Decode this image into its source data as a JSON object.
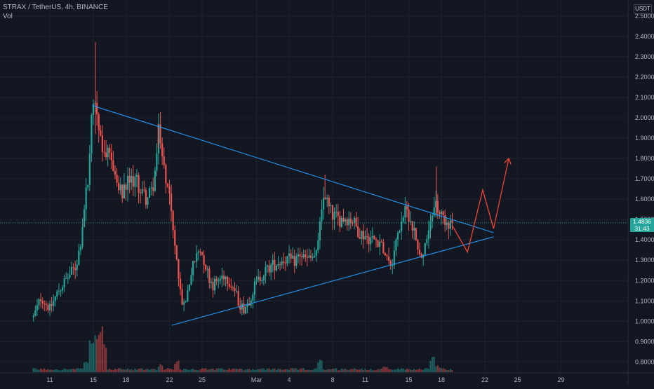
{
  "header": {
    "title": "STRAX / TetherUS, 4h, BINANCE",
    "indicator": "Vol"
  },
  "price_axis": {
    "currency": "USDT",
    "last_price": "1.4836",
    "countdown": "31:43"
  },
  "colors": {
    "background": "#131722",
    "up": "#26a69a",
    "down": "#ef5350",
    "trendline": "#2196f3",
    "projection": "#f44336",
    "grid": "#1e222d"
  },
  "chart_data": {
    "type": "candlestick",
    "title": "STRAX / TetherUS, 4h, BINANCE",
    "ylim": [
      0.76,
      2.52
    ],
    "y_ticks": [
      "0.8000",
      "0.9000",
      "1.0000",
      "1.1000",
      "1.2000",
      "1.3000",
      "1.4000",
      "1.5000",
      "1.6000",
      "1.7000",
      "1.8000",
      "1.9000",
      "2.0000",
      "2.1000",
      "2.2000",
      "2.3000",
      "2.4000",
      "2.5000"
    ],
    "x_ticks": [
      "11",
      "15",
      "18",
      "22",
      "25",
      "Mar",
      "4",
      "8",
      "11",
      "15",
      "18",
      "22",
      "25",
      "29"
    ],
    "x_tick_days": [
      -18,
      -14,
      -11,
      -7,
      -4,
      1,
      4,
      8,
      11,
      15,
      18,
      22,
      25,
      29
    ],
    "grid": true,
    "legend": "none",
    "price_anchors": [
      [
        -19.5,
        1.02
      ],
      [
        -18.8,
        1.12
      ],
      [
        -18,
        1.06
      ],
      [
        -17.2,
        1.15
      ],
      [
        -16.3,
        1.22
      ],
      [
        -15.6,
        1.27
      ],
      [
        -15.2,
        1.38
      ],
      [
        -14.7,
        1.62
      ],
      [
        -14.4,
        1.72
      ],
      [
        -14.2,
        1.98
      ],
      [
        -13.9,
        2.12
      ],
      [
        -13.5,
        1.94
      ],
      [
        -13,
        1.83
      ],
      [
        -12.2,
        1.78
      ],
      [
        -11.8,
        1.66
      ],
      [
        -11.3,
        1.62
      ],
      [
        -10.8,
        1.68
      ],
      [
        -10.2,
        1.7
      ],
      [
        -9.6,
        1.64
      ],
      [
        -9.1,
        1.6
      ],
      [
        -8.6,
        1.64
      ],
      [
        -8.3,
        1.74
      ],
      [
        -8,
        1.92
      ],
      [
        -7.6,
        1.77
      ],
      [
        -7.2,
        1.69
      ],
      [
        -6.9,
        1.56
      ],
      [
        -6.6,
        1.4
      ],
      [
        -6.3,
        1.28
      ],
      [
        -6,
        1.13
      ],
      [
        -5.7,
        1.07
      ],
      [
        -5.4,
        1.13
      ],
      [
        -5,
        1.24
      ],
      [
        -4.6,
        1.31
      ],
      [
        -4.2,
        1.36
      ],
      [
        -3.8,
        1.3
      ],
      [
        -3.4,
        1.22
      ],
      [
        -3,
        1.18
      ],
      [
        -2.5,
        1.2
      ],
      [
        -2,
        1.23
      ],
      [
        -1.5,
        1.2
      ],
      [
        -1,
        1.15
      ],
      [
        -0.6,
        1.09
      ],
      [
        -0.2,
        1.06
      ],
      [
        0.3,
        1.1
      ],
      [
        0.8,
        1.17
      ],
      [
        1.5,
        1.23
      ],
      [
        2.3,
        1.27
      ],
      [
        3,
        1.29
      ],
      [
        3.7,
        1.31
      ],
      [
        4.4,
        1.29
      ],
      [
        5,
        1.33
      ],
      [
        5.6,
        1.3
      ],
      [
        6.1,
        1.31
      ],
      [
        6.6,
        1.33
      ],
      [
        6.9,
        1.55
      ],
      [
        7.3,
        1.63
      ],
      [
        7.6,
        1.56
      ],
      [
        8,
        1.52
      ],
      [
        8.6,
        1.5
      ],
      [
        9.2,
        1.51
      ],
      [
        9.8,
        1.5
      ],
      [
        10.4,
        1.44
      ],
      [
        11,
        1.42
      ],
      [
        11.7,
        1.4
      ],
      [
        12.3,
        1.4
      ],
      [
        12.9,
        1.33
      ],
      [
        13.4,
        1.28
      ],
      [
        13.9,
        1.4
      ],
      [
        14.4,
        1.52
      ],
      [
        14.9,
        1.54
      ],
      [
        15.4,
        1.46
      ],
      [
        15.8,
        1.38
      ],
      [
        16.2,
        1.3
      ],
      [
        16.6,
        1.38
      ],
      [
        17,
        1.46
      ],
      [
        17.4,
        1.6
      ],
      [
        17.6,
        1.55
      ],
      [
        18,
        1.52
      ],
      [
        18.6,
        1.49
      ],
      [
        19,
        1.4836
      ]
    ],
    "volume_peaks": [
      [
        -14.6,
        0.12
      ],
      [
        -14.2,
        0.36
      ],
      [
        -13.8,
        0.46
      ],
      [
        -13.4,
        0.68
      ],
      [
        -13,
        0.32
      ],
      [
        -7.8,
        0.09
      ],
      [
        -6.4,
        0.15
      ],
      [
        6.8,
        0.14
      ],
      [
        12.8,
        0.06
      ],
      [
        17.2,
        0.2
      ],
      [
        17.6,
        0.08
      ]
    ],
    "annotations": {
      "upper_trendline": [
        [
          -14.1,
          2.06
        ],
        [
          22.8,
          1.435
        ]
      ],
      "lower_trendline": [
        [
          -6.8,
          0.98
        ],
        [
          22.8,
          1.415
        ]
      ],
      "projection_path": [
        [
          19,
          1.47
        ],
        [
          20.4,
          1.34
        ],
        [
          21.8,
          1.645
        ],
        [
          22.8,
          1.455
        ],
        [
          24.2,
          1.8
        ]
      ],
      "last_price_line": 1.4836
    }
  }
}
